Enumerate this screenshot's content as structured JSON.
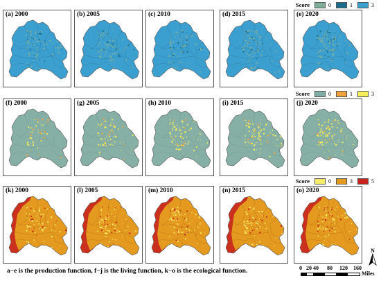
{
  "legends": [
    {
      "title": "Score",
      "items": [
        {
          "label": "0",
          "color": "#7fae9b"
        },
        {
          "label": "1",
          "color": "#1b6b8a"
        },
        {
          "label": "3",
          "color": "#3b9fcf"
        }
      ]
    },
    {
      "title": "Score",
      "items": [
        {
          "label": "0",
          "color": "#7faca4"
        },
        {
          "label": "1",
          "color": "#f2a23c"
        },
        {
          "label": "3",
          "color": "#f5ee5a"
        }
      ]
    },
    {
      "title": "Score",
      "items": [
        {
          "label": "0",
          "color": "#f6ec6a"
        },
        {
          "label": "3",
          "color": "#e39a1f"
        },
        {
          "label": "5",
          "color": "#c8241d"
        }
      ]
    }
  ],
  "rows": [
    {
      "function": "production",
      "base": "#3b9fcf",
      "speck": "#7fae9b",
      "speck2": "#1b6b8a",
      "edge": "#2f6f8f",
      "panels": [
        {
          "label": "(a) 2000"
        },
        {
          "label": "(b) 2005"
        },
        {
          "label": "(c) 2010"
        },
        {
          "label": "(d) 2015"
        },
        {
          "label": "(e) 2020"
        }
      ]
    },
    {
      "function": "living",
      "base": "#86b0a6",
      "speck": "#f5ee5a",
      "speck2": "#f2a23c",
      "edge": "#6f8f88",
      "panels": [
        {
          "label": "(f) 2000"
        },
        {
          "label": "(g) 2005"
        },
        {
          "label": "(h) 2010"
        },
        {
          "label": "(i) 2015"
        },
        {
          "label": "(j) 2020"
        }
      ]
    },
    {
      "function": "ecological",
      "base": "#e39a1f",
      "speck": "#f6ec6a",
      "speck2": "#c8241d",
      "edge": "#a8650f",
      "panels": [
        {
          "label": "(k) 2000"
        },
        {
          "label": "(l) 2005"
        },
        {
          "label": "(m) 2010"
        },
        {
          "label": "(n) 2015"
        },
        {
          "label": "(o) 2020"
        }
      ]
    }
  ],
  "caption": "a−e is the production function, f−j is the living function, k−o is the ecological function.",
  "scalebar": {
    "ticks": [
      "0",
      "20",
      "40",
      "80",
      "120",
      "160"
    ],
    "unit": "Miles"
  },
  "north_label": "N"
}
